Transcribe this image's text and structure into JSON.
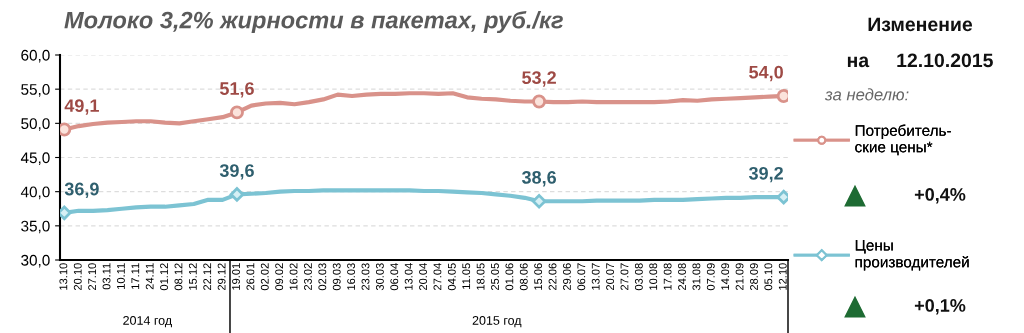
{
  "chart_data": {
    "type": "line",
    "title": "Молоко 3,2% жирности в пакетах, руб./кг",
    "categories": [
      "13.10",
      "20.10",
      "27.10",
      "03.11",
      "10.11",
      "17.11",
      "24.11",
      "01.12",
      "08.12",
      "15.12",
      "22.12",
      "29.12",
      "19.01",
      "26.01",
      "02.02",
      "09.02",
      "16.02",
      "23.02",
      "02.03",
      "09.03",
      "16.03",
      "23.03",
      "30.03",
      "06.04",
      "13.04",
      "20.04",
      "27.04",
      "04.05",
      "11.05",
      "18.05",
      "25.05",
      "01.06",
      "08.06",
      "15.06",
      "22.06",
      "29.06",
      "06.07",
      "13.07",
      "20.07",
      "27.07",
      "03.08",
      "10.08",
      "17.08",
      "24.08",
      "31.08",
      "07.09",
      "14.09",
      "21.09",
      "28.09",
      "05.10",
      "12.10"
    ],
    "series": [
      {
        "name": "Потребитель-\nские цены*",
        "color": "#d9928a",
        "values": [
          49.1,
          49.6,
          49.9,
          50.1,
          50.2,
          50.3,
          50.3,
          50.1,
          50.0,
          50.3,
          50.6,
          50.9,
          51.6,
          52.6,
          52.9,
          53.0,
          52.8,
          53.1,
          53.5,
          54.2,
          54.0,
          54.2,
          54.3,
          54.3,
          54.4,
          54.4,
          54.3,
          54.4,
          53.8,
          53.6,
          53.5,
          53.3,
          53.2,
          53.2,
          53.1,
          53.1,
          53.2,
          53.1,
          53.1,
          53.1,
          53.1,
          53.1,
          53.2,
          53.4,
          53.3,
          53.5,
          53.6,
          53.7,
          53.8,
          53.9,
          54.0
        ],
        "value_labels": [
          "49,1",
          null,
          null,
          null,
          null,
          null,
          null,
          null,
          null,
          null,
          null,
          null,
          "51,6",
          null,
          null,
          null,
          null,
          null,
          null,
          null,
          null,
          null,
          null,
          null,
          null,
          null,
          null,
          null,
          null,
          null,
          null,
          null,
          null,
          "53,2",
          null,
          null,
          null,
          null,
          null,
          null,
          null,
          null,
          null,
          null,
          null,
          null,
          null,
          null,
          null,
          null,
          "54,0"
        ]
      },
      {
        "name": "Цены\nпроизводителей",
        "color": "#7cc3d3",
        "values": [
          36.9,
          37.2,
          37.2,
          37.3,
          37.5,
          37.7,
          37.8,
          37.8,
          38.0,
          38.2,
          38.8,
          38.8,
          39.6,
          39.7,
          39.8,
          40.0,
          40.1,
          40.1,
          40.2,
          40.2,
          40.2,
          40.2,
          40.2,
          40.2,
          40.2,
          40.1,
          40.1,
          40.0,
          39.9,
          39.8,
          39.6,
          39.4,
          39.1,
          38.6,
          38.6,
          38.6,
          38.6,
          38.7,
          38.7,
          38.7,
          38.7,
          38.8,
          38.8,
          38.8,
          38.9,
          39.0,
          39.1,
          39.1,
          39.2,
          39.2,
          39.2
        ],
        "value_labels": [
          "36,9",
          null,
          null,
          null,
          null,
          null,
          null,
          null,
          null,
          null,
          null,
          null,
          "39,6",
          null,
          null,
          null,
          null,
          null,
          null,
          null,
          null,
          null,
          null,
          null,
          null,
          null,
          null,
          null,
          null,
          null,
          null,
          null,
          null,
          "38,6",
          null,
          null,
          null,
          null,
          null,
          null,
          null,
          null,
          null,
          null,
          null,
          null,
          null,
          null,
          null,
          null,
          "39,2"
        ]
      }
    ],
    "ylim": [
      30,
      60
    ],
    "yticks": [
      {
        "value": 30,
        "label": "30,0"
      },
      {
        "value": 35,
        "label": "35,0"
      },
      {
        "value": 40,
        "label": "40,0"
      },
      {
        "value": 45,
        "label": "45,0"
      },
      {
        "value": 50,
        "label": "50,0"
      },
      {
        "value": 55,
        "label": "55,0"
      },
      {
        "value": 60,
        "label": "60,0"
      }
    ],
    "grid": "y",
    "legend": "right",
    "line_style": "solid",
    "annotations": [
      "Изменение",
      "на     12.10.2015",
      "за неделю:",
      "+0,4%",
      "+0,1%",
      "2014 год",
      "2015 год"
    ]
  }
}
